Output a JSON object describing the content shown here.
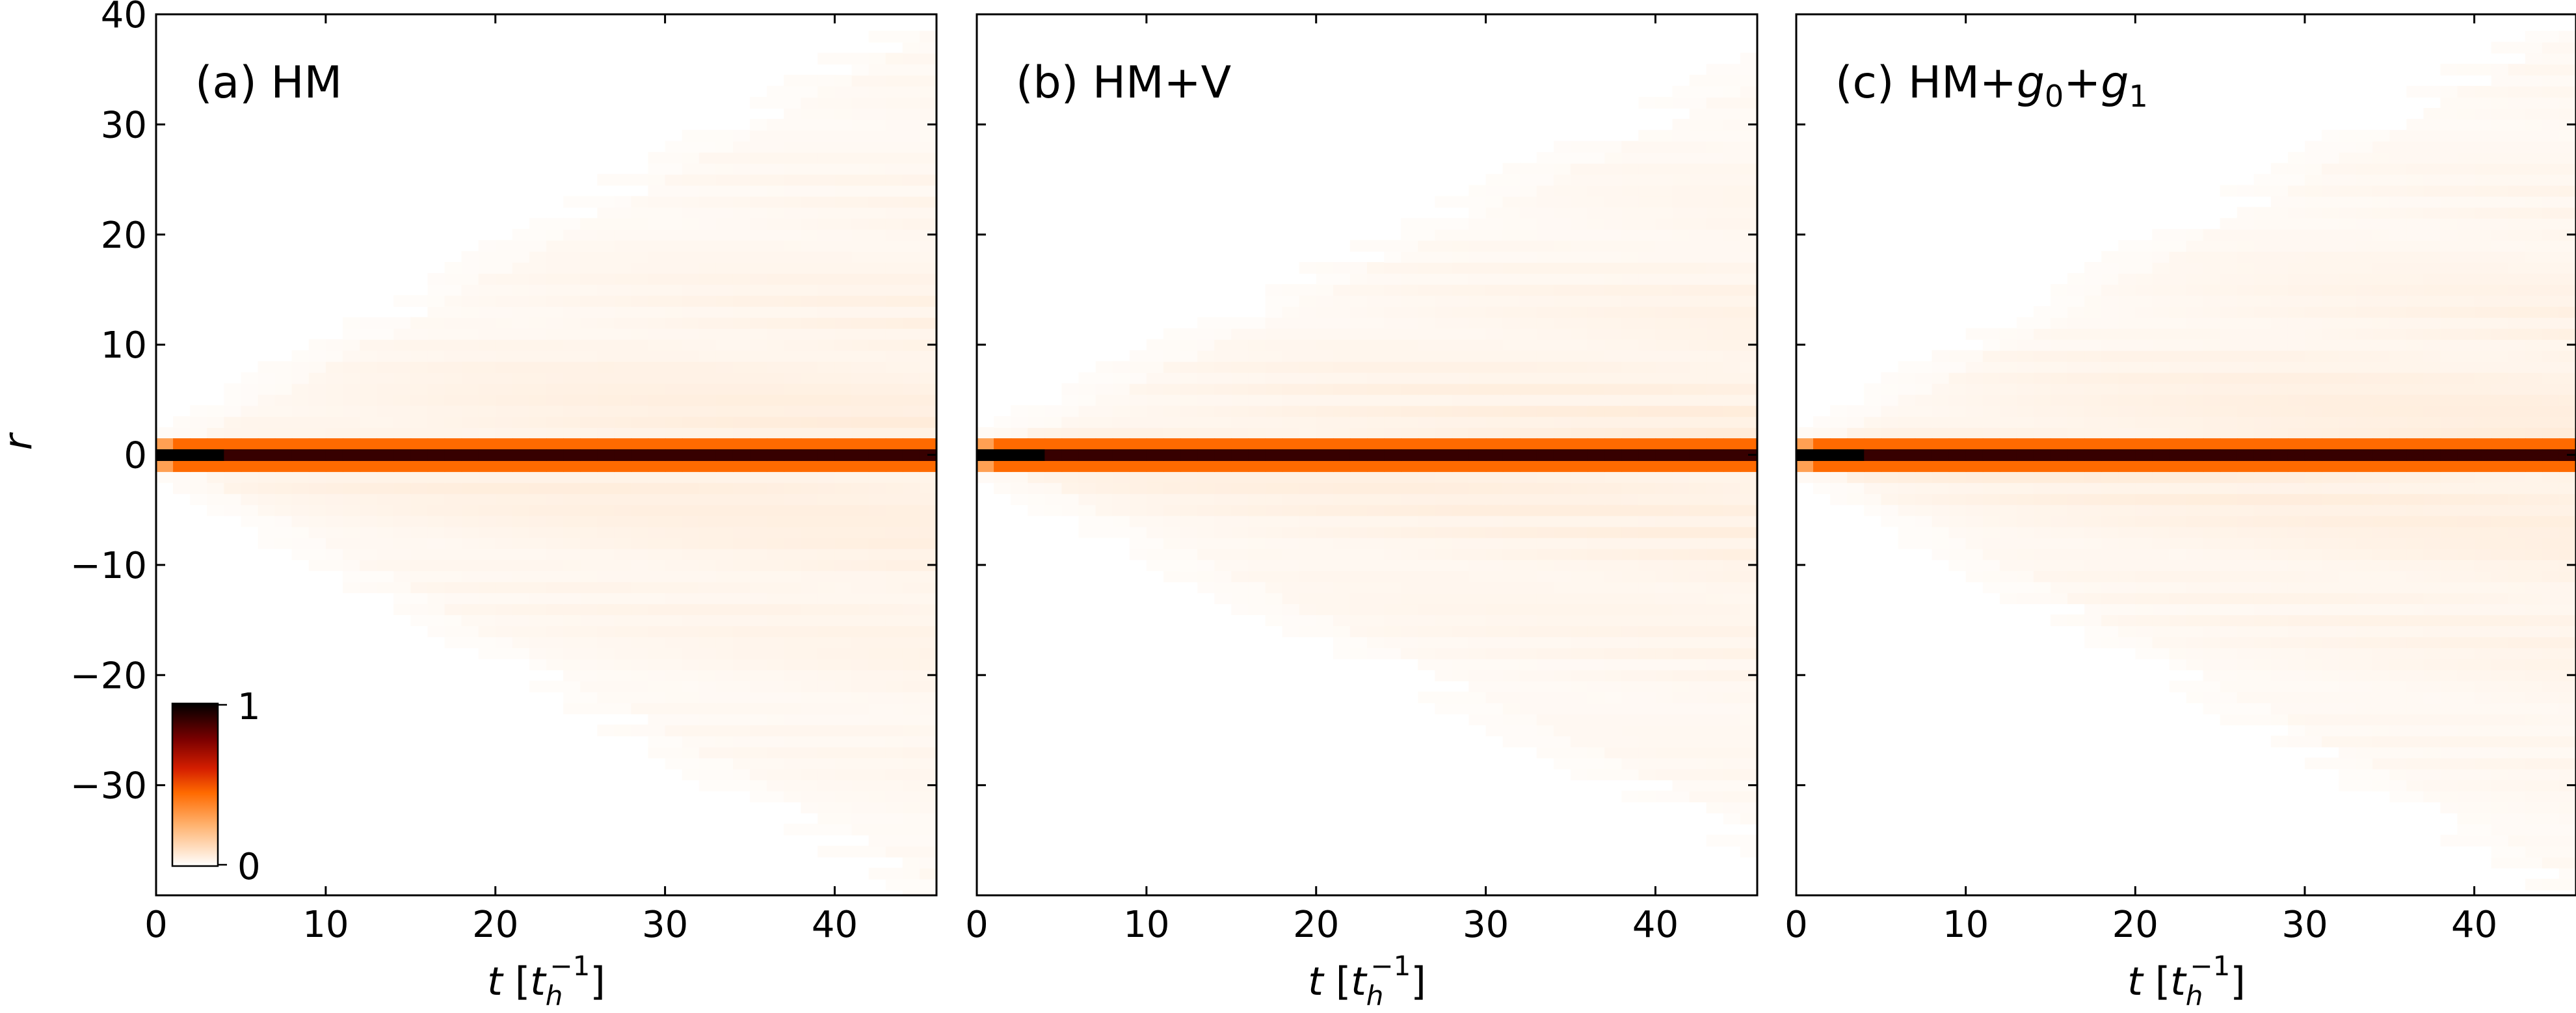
{
  "chart_data": [
    {
      "type": "heatmap",
      "title": "(a) HM",
      "xlabel": "t [t_h^-1]",
      "ylabel": "r",
      "xlim": [
        0,
        46
      ],
      "ylim": [
        -40,
        40
      ],
      "xticks": [
        "0",
        "10",
        "20",
        "30",
        "40"
      ],
      "yticks": [
        "40",
        "30",
        "20",
        "10",
        "0",
        "−10",
        "−20",
        "−30"
      ],
      "colormap": "gist_heat_r",
      "colorbar": {
        "min": "0",
        "max": "1",
        "placement": "inset lower-left"
      },
      "description_values": {
        "peak_r": 0,
        "peak_value": 1,
        "spread_slope": 0.85,
        "spread_offset": 1.5
      }
    },
    {
      "type": "heatmap",
      "title": "(b) HM+V",
      "xlabel": "t [t_h^-1]",
      "xlim": [
        0,
        46
      ],
      "ylim": [
        -40,
        40
      ],
      "xticks": [
        "0",
        "10",
        "20",
        "30",
        "40"
      ],
      "colormap": "gist_heat_r",
      "description_values": {
        "peak_r": 0,
        "peak_value": 1,
        "spread_slope": 0.75,
        "spread_offset": 1.5
      }
    },
    {
      "type": "heatmap",
      "title": "(c) HM+g0+g1",
      "xlabel": "t [t_h^-1]",
      "xlim": [
        0,
        46
      ],
      "ylim": [
        -40,
        40
      ],
      "xticks": [
        "0",
        "10",
        "20",
        "30",
        "40"
      ],
      "colormap": "gist_heat_r",
      "description_values": {
        "peak_r": 0,
        "peak_value": 1,
        "spread_slope": 0.85,
        "spread_offset": 1.5
      }
    }
  ],
  "panels": [
    {
      "label_main": "(a) HM",
      "label_parts": []
    },
    {
      "label_main": "(b) HM+V",
      "label_parts": []
    },
    {
      "label_main": "(c) HM+",
      "label_parts": [
        {
          "text": "g",
          "sub": "0"
        },
        {
          "text": "+",
          "sub": ""
        },
        {
          "text": "g",
          "sub": "1"
        }
      ]
    }
  ],
  "axis_text": {
    "ylabel": "r",
    "xlabel_var": "t",
    "xlabel_unit": "t",
    "xlabel_unit_sub": "h",
    "xlabel_unit_sup": "−1"
  },
  "colors": {
    "cmap_stops": [
      "#ffffff",
      "#ffd9b8",
      "#ff9a3c",
      "#ff5a00",
      "#d41e00",
      "#8a0000",
      "#2b0000",
      "#000000"
    ]
  }
}
